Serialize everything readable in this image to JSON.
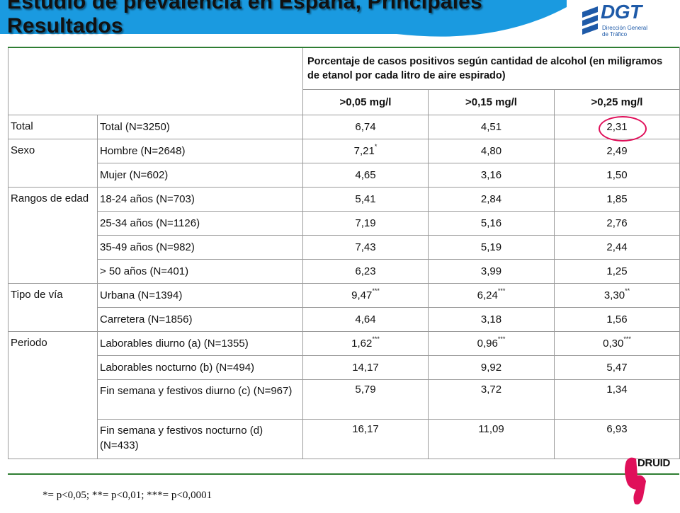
{
  "title": {
    "line1": "Estudio de prevalencia en España, Principales",
    "line2": "Resultados"
  },
  "logo": {
    "name": "DGT",
    "subtitle_line1": "Dirección General",
    "subtitle_line2": "de Tráfico"
  },
  "colors": {
    "banner": "#1a9ae0",
    "table_rule": "#2e7d32",
    "highlight_circle": "#e0105a",
    "druid_accent": "#e0105a"
  },
  "table": {
    "header_main": "Porcentaje de casos positivos según cantidad de alcohol (en miligramos de etanol por cada litro de aire espirado)",
    "columns": [
      ">0,05 mg/l",
      ">0,15 mg/l",
      ">0,25 mg/l"
    ],
    "groups": [
      {
        "category": "Total",
        "rows": [
          {
            "label": "Total (N=3250)",
            "v1": "6,74",
            "s1": "",
            "v2": "4,51",
            "s2": "",
            "v3": "2,31",
            "s3": ""
          }
        ]
      },
      {
        "category": "Sexo",
        "rows": [
          {
            "label": "Hombre (N=2648)",
            "v1": "7,21",
            "s1": "*",
            "v2": "4,80",
            "s2": "",
            "v3": "2,49",
            "s3": ""
          },
          {
            "label": "Mujer (N=602)",
            "v1": "4,65",
            "s1": "",
            "v2": "3,16",
            "s2": "",
            "v3": "1,50",
            "s3": ""
          }
        ]
      },
      {
        "category": "Rangos de edad",
        "rows": [
          {
            "label": "18-24 años (N=703)",
            "v1": "5,41",
            "s1": "",
            "v2": "2,84",
            "s2": "",
            "v3": "1,85",
            "s3": ""
          },
          {
            "label": "25-34 años (N=1126)",
            "v1": "7,19",
            "s1": "",
            "v2": "5,16",
            "s2": "",
            "v3": "2,76",
            "s3": ""
          },
          {
            "label": "35-49 años (N=982)",
            "v1": "7,43",
            "s1": "",
            "v2": "5,19",
            "s2": "",
            "v3": "2,44",
            "s3": ""
          },
          {
            "label": "> 50 años (N=401)",
            "v1": "6,23",
            "s1": "",
            "v2": "3,99",
            "s2": "",
            "v3": "1,25",
            "s3": ""
          }
        ]
      },
      {
        "category": "Tipo de vía",
        "rows": [
          {
            "label": "Urbana (N=1394)",
            "v1": "9,47",
            "s1": "***",
            "v2": "6,24",
            "s2": "***",
            "v3": "3,30",
            "s3": "**"
          },
          {
            "label": "Carretera (N=1856)",
            "v1": "4,64",
            "s1": "",
            "v2": "3,18",
            "s2": "",
            "v3": "1,56",
            "s3": ""
          }
        ]
      },
      {
        "category": "Periodo",
        "rows": [
          {
            "label": "Laborables diurno (a) (N=1355)",
            "v1": "1,62",
            "s1": "***",
            "v2": "0,96",
            "s2": "***",
            "v3": "0,30",
            "s3": "***"
          },
          {
            "label": "Laborables nocturno (b) (N=494)",
            "v1": "14,17",
            "s1": "",
            "v2": "9,92",
            "s2": "",
            "v3": "5,47",
            "s3": ""
          },
          {
            "label": "Fin semana y festivos diurno (c) (N=967)",
            "v1": "5,79",
            "s1": "",
            "v2": "3,72",
            "s2": "",
            "v3": "1,34",
            "s3": ""
          },
          {
            "label": "Fin semana y festivos nocturno (d) (N=433)",
            "v1": "16,17",
            "s1": "",
            "v2": "11,09",
            "s2": "",
            "v3": "6,93",
            "s3": ""
          }
        ]
      }
    ]
  },
  "footnote": "*= p<0,05; **= p<0,01; ***= p<0,0001",
  "druid_logo": "DRUID"
}
